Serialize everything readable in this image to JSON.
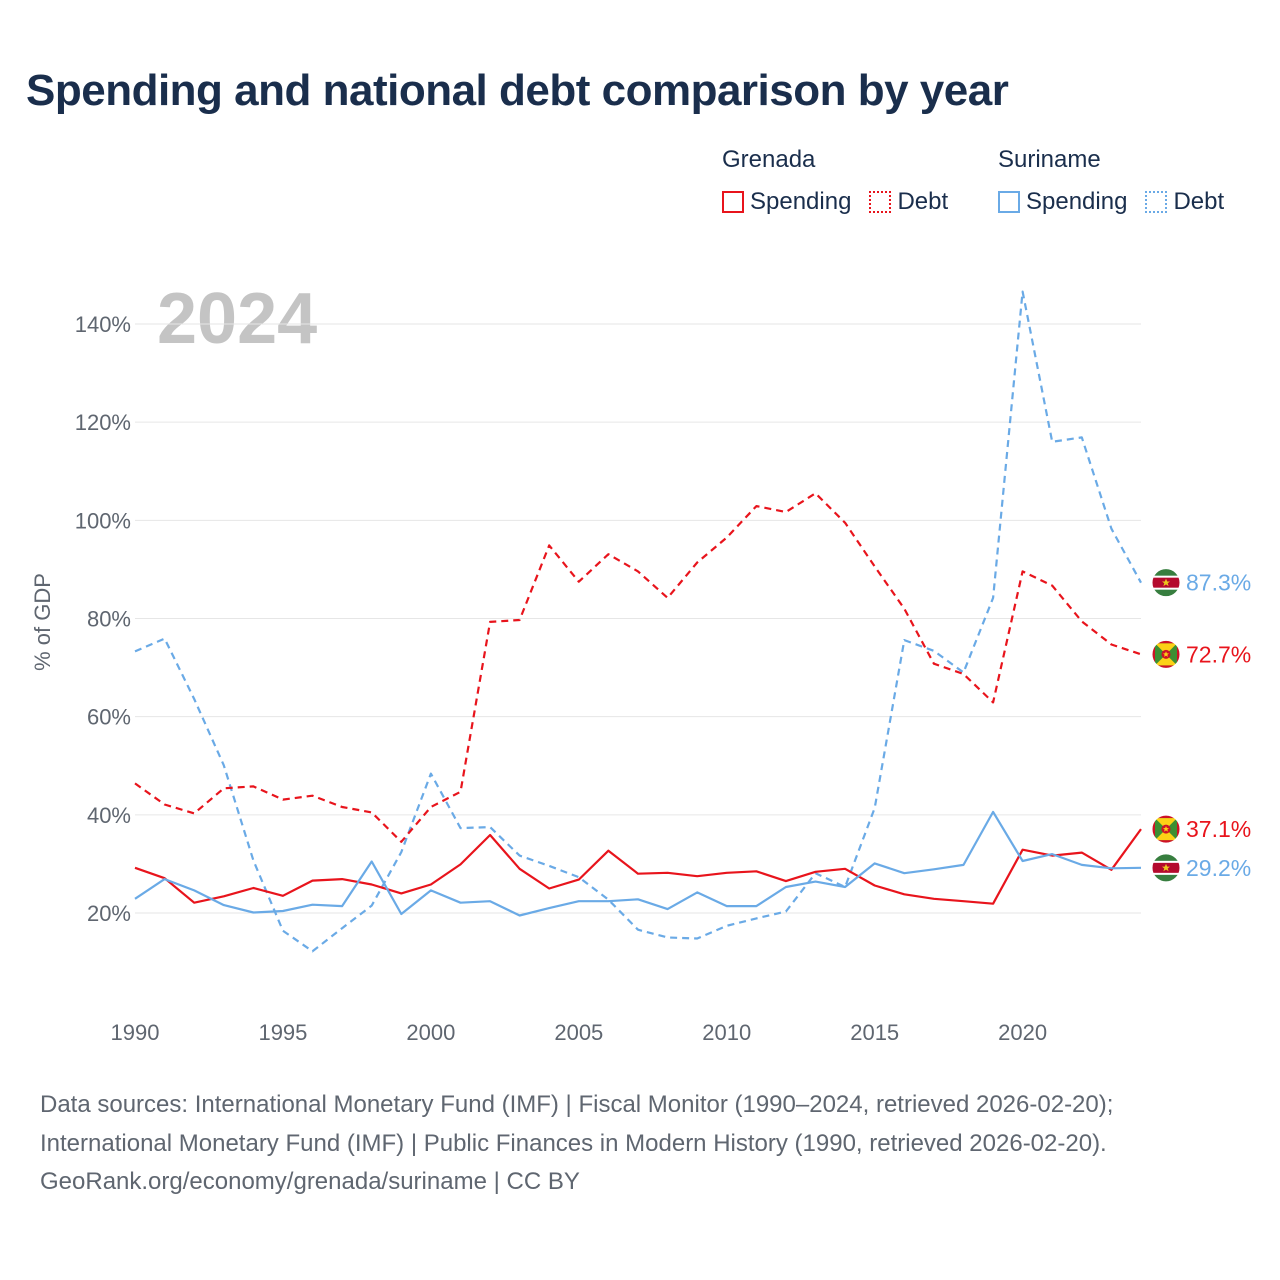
{
  "title": "Spending and national debt comparison by year",
  "legend": {
    "group1": {
      "name": "Grenada",
      "spending": "Spending",
      "debt": "Debt"
    },
    "group2": {
      "name": "Suriname",
      "spending": "Spending",
      "debt": "Debt"
    }
  },
  "year_label": "2024",
  "footer": {
    "line1": "Data sources: International Monetary Fund (IMF) | Fiscal Monitor (1990–2024, retrieved 2026-02-20);",
    "line2": "International Monetary Fund (IMF) | Public Finances in Modern History (1990, retrieved 2026-02-20).",
    "line3": "GeoRank.org/economy/grenada/suriname | CC BY"
  },
  "chart_data": {
    "type": "line",
    "title": "Spending and national debt comparison by year",
    "ylabel": "% of GDP",
    "xlabel": "",
    "xlim": [
      1990,
      2024
    ],
    "ylim": [
      0,
      150
    ],
    "x_ticks": [
      {
        "value": 1990,
        "label": "1990"
      },
      {
        "value": 1995,
        "label": "1995"
      },
      {
        "value": 2000,
        "label": "2000"
      },
      {
        "value": 2005,
        "label": "2005"
      },
      {
        "value": 2010,
        "label": "2010"
      },
      {
        "value": 2015,
        "label": "2015"
      },
      {
        "value": 2020,
        "label": "2020"
      }
    ],
    "y_ticks": [
      {
        "value": 20,
        "label": "20%"
      },
      {
        "value": 40,
        "label": "40%"
      },
      {
        "value": 60,
        "label": "60%"
      },
      {
        "value": 80,
        "label": "80%"
      },
      {
        "value": 100,
        "label": "100%"
      },
      {
        "value": 120,
        "label": "120%"
      },
      {
        "value": 140,
        "label": "140%"
      }
    ],
    "years": [
      1990,
      1991,
      1992,
      1993,
      1994,
      1995,
      1996,
      1997,
      1998,
      1999,
      2000,
      2001,
      2002,
      2003,
      2004,
      2005,
      2006,
      2007,
      2008,
      2009,
      2010,
      2011,
      2012,
      2013,
      2014,
      2015,
      2016,
      2017,
      2018,
      2019,
      2020,
      2021,
      2022,
      2023,
      2024
    ],
    "series": [
      {
        "name": "Suriname Debt",
        "country": "Suriname",
        "measure": "Debt",
        "color": "#6aaae6",
        "dashed": true,
        "end_label": "87.3%",
        "values": [
          73.3,
          75.9,
          63.6,
          50.1,
          30.7,
          16.4,
          12.2,
          16.9,
          21.5,
          32.4,
          48.4,
          37.3,
          37.5,
          31.7,
          29.6,
          27.3,
          22.7,
          16.6,
          15.0,
          14.8,
          17.4,
          18.9,
          20.3,
          28.1,
          25.3,
          41.4,
          75.6,
          73.4,
          69.0,
          84.2,
          146.6,
          116.0,
          116.9,
          98.3,
          87.3
        ]
      },
      {
        "name": "Grenada Debt",
        "country": "Grenada",
        "measure": "Debt",
        "color": "#e8141c",
        "dashed": true,
        "end_label": "72.7%",
        "values": [
          46.4,
          42.1,
          40.3,
          45.4,
          45.8,
          43.1,
          43.9,
          41.6,
          40.5,
          34.5,
          41.6,
          44.7,
          79.3,
          79.7,
          94.9,
          87.5,
          93.1,
          89.6,
          84.2,
          91.4,
          96.5,
          102.9,
          101.7,
          105.5,
          99.5,
          90.6,
          82.0,
          70.8,
          68.7,
          62.9,
          89.6,
          86.7,
          79.4,
          74.7,
          72.7
        ]
      },
      {
        "name": "Grenada Spending",
        "country": "Grenada",
        "measure": "Spending",
        "color": "#e8141c",
        "dashed": false,
        "end_label": "37.1%",
        "values": [
          29.2,
          27.1,
          22.1,
          23.4,
          25.1,
          23.5,
          26.6,
          26.9,
          25.8,
          24.0,
          25.8,
          29.9,
          35.9,
          29.0,
          25.0,
          26.8,
          32.7,
          28.0,
          28.2,
          27.5,
          28.2,
          28.5,
          26.5,
          28.4,
          29.0,
          25.6,
          23.8,
          22.9,
          22.4,
          21.9,
          32.9,
          31.7,
          32.3,
          28.8,
          37.1
        ]
      },
      {
        "name": "Suriname Spending",
        "country": "Suriname",
        "measure": "Spending",
        "color": "#6aaae6",
        "dashed": false,
        "end_label": "29.2%",
        "values": [
          22.9,
          26.9,
          24.6,
          21.6,
          20.1,
          20.4,
          21.7,
          21.4,
          30.5,
          19.8,
          24.6,
          22.1,
          22.4,
          19.5,
          21.0,
          22.4,
          22.4,
          22.8,
          20.8,
          24.2,
          21.4,
          21.4,
          25.3,
          26.4,
          25.3,
          30.1,
          28.1,
          28.9,
          29.8,
          40.6,
          30.6,
          32.0,
          29.8,
          29.1,
          29.2
        ]
      }
    ]
  }
}
